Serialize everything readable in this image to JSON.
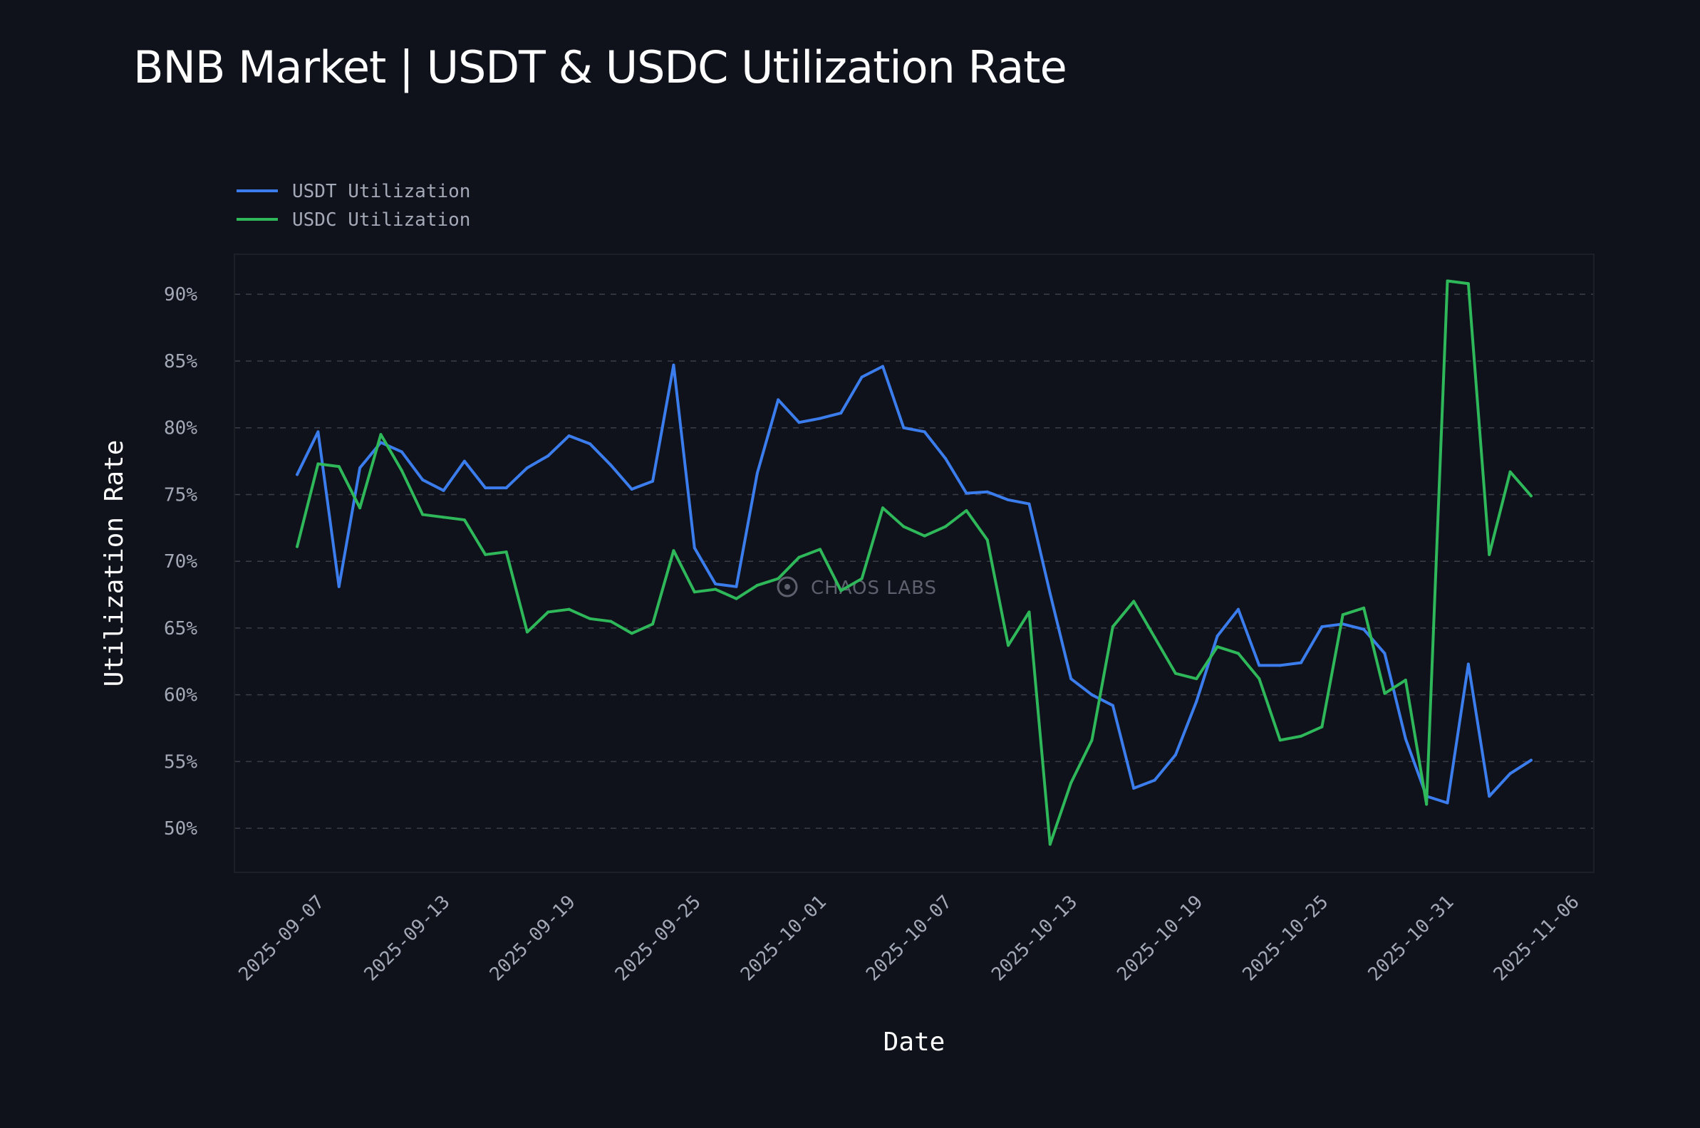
{
  "title": "BNB Market | USDT & USDC Utilization Rate",
  "watermark": "CHAOS LABS",
  "colors": {
    "background": "#0f121b",
    "plot_border": "#1c1f26",
    "grid": "#3a3e48",
    "usdt": "#3b7ded",
    "usdc": "#2fb85a"
  },
  "chart_data": {
    "type": "line",
    "xlabel": "Date",
    "ylabel": "Utilization Rate",
    "x_start": "2025-09-06",
    "xlim": [
      "2025-09-03",
      "2025-11-07"
    ],
    "ylim": [
      46.7,
      93.0
    ],
    "y_ticks": [
      50,
      55,
      60,
      65,
      70,
      75,
      80,
      85,
      90
    ],
    "y_tick_labels": [
      "50%",
      "55%",
      "60%",
      "65%",
      "70%",
      "75%",
      "80%",
      "85%",
      "90%"
    ],
    "x_ticks": [
      "2025-09-07",
      "2025-09-13",
      "2025-09-19",
      "2025-09-25",
      "2025-10-01",
      "2025-10-07",
      "2025-10-13",
      "2025-10-19",
      "2025-10-25",
      "2025-10-31",
      "2025-11-06"
    ],
    "grid": "horizontal dashed",
    "legend_position": "top-left",
    "series": [
      {
        "name": "USDT Utilization",
        "color": "#3b7ded",
        "values": [
          76.5,
          79.7,
          68.1,
          77.0,
          78.9,
          78.2,
          76.1,
          75.3,
          77.5,
          75.5,
          75.5,
          77.0,
          77.9,
          79.4,
          78.8,
          77.2,
          75.4,
          76.0,
          84.7,
          71.0,
          68.3,
          68.1,
          76.6,
          82.1,
          80.4,
          80.7,
          81.1,
          83.8,
          84.6,
          80.0,
          79.7,
          77.7,
          75.1,
          75.2,
          74.6,
          74.3,
          67.6,
          61.2,
          60.0,
          59.2,
          53.0,
          53.6,
          55.5,
          59.5,
          64.4,
          66.4,
          62.2,
          62.2,
          62.4,
          65.1,
          65.3,
          64.9,
          63.1,
          56.7,
          52.4,
          51.9,
          62.3,
          52.4,
          54.1,
          55.1
        ]
      },
      {
        "name": "USDC Utilization",
        "color": "#2fb85a",
        "values": [
          71.1,
          77.3,
          77.1,
          74.0,
          79.5,
          76.8,
          73.5,
          73.3,
          73.1,
          70.5,
          70.7,
          64.7,
          66.2,
          66.4,
          65.7,
          65.5,
          64.6,
          65.3,
          70.8,
          67.7,
          67.9,
          67.2,
          68.2,
          68.7,
          70.3,
          70.9,
          67.8,
          68.7,
          74.0,
          72.6,
          71.9,
          72.6,
          73.8,
          71.6,
          63.7,
          66.2,
          48.8,
          53.4,
          56.6,
          65.1,
          67.0,
          64.3,
          61.6,
          61.2,
          63.6,
          63.1,
          61.2,
          56.6,
          56.9,
          57.6,
          66.0,
          66.5,
          60.1,
          61.1,
          51.8,
          91.0,
          90.8,
          70.5,
          76.7,
          74.9
        ]
      }
    ]
  }
}
